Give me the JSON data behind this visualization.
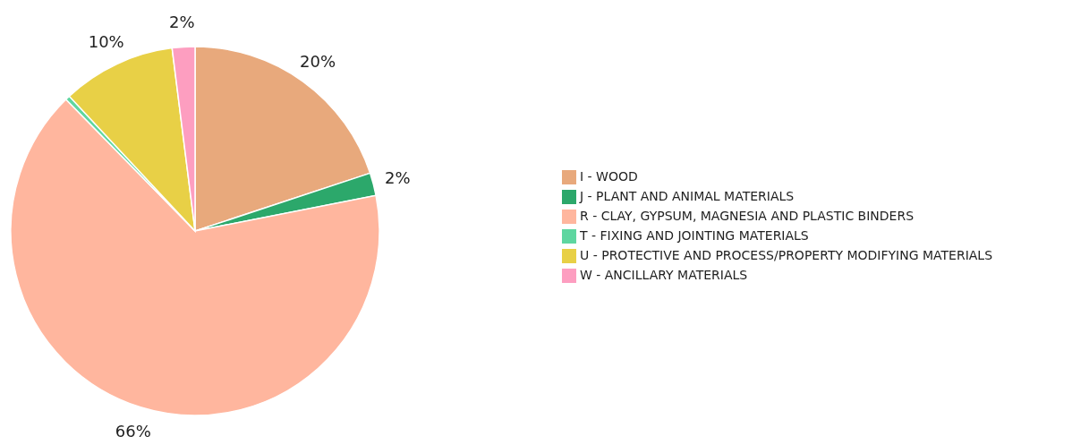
{
  "chart_data": {
    "type": "pie",
    "categories": [
      "I - WOOD",
      "J - PLANT AND ANIMAL MATERIALS",
      "R - CLAY, GYPSUM, MAGNESIA AND PLASTIC BINDERS",
      "T - FIXING AND JOINTING MATERIALS",
      "U - PROTECTIVE AND PROCESS/PROPERTY MODIFYING MATERIALS",
      "W - ANCILLARY MATERIALS"
    ],
    "values": [
      20,
      2,
      66,
      0.4,
      10,
      2
    ],
    "value_labels": [
      "20%",
      "2%",
      "66%",
      null,
      "10%",
      "2%"
    ],
    "colors": [
      "#e8a97c",
      "#2ca86b",
      "#ffb69e",
      "#5ed6a0",
      "#e8d046",
      "#fd9ec0"
    ],
    "legend": "right"
  }
}
